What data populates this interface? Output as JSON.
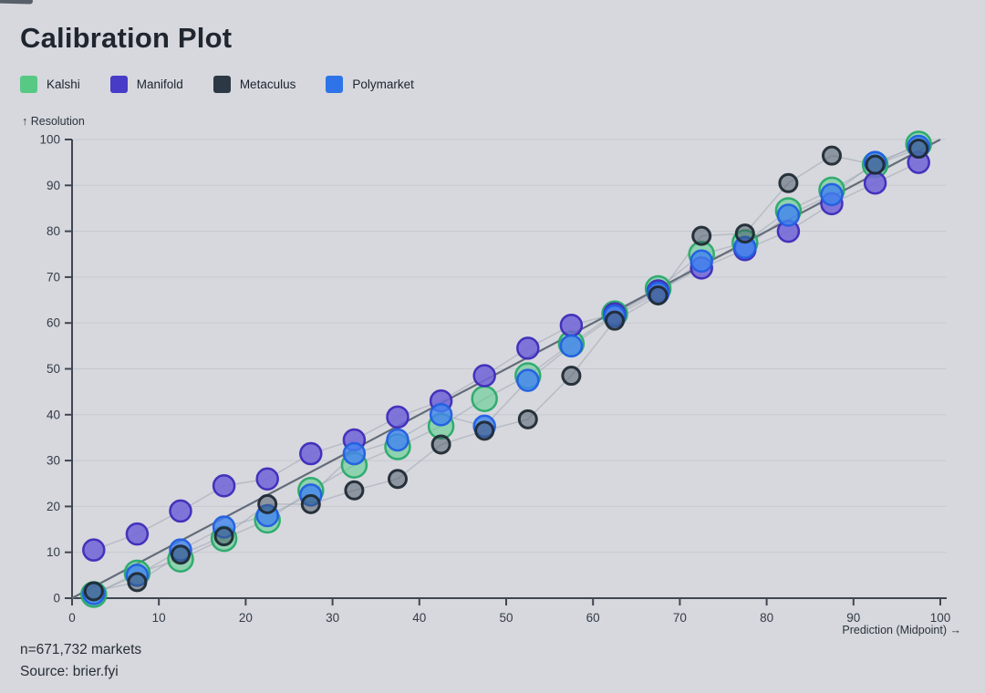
{
  "title": "Calibration Plot",
  "legend": {
    "items": [
      {
        "label": "Kalshi",
        "color": "#57c984"
      },
      {
        "label": "Manifold",
        "color": "#473bc8"
      },
      {
        "label": "Metaculus",
        "color": "#2c3844"
      },
      {
        "label": "Polymarket",
        "color": "#2e74e8"
      }
    ]
  },
  "footer": {
    "sample_size": "n=671,732 markets",
    "source": "Source: brier.fyi"
  },
  "chart_data": {
    "type": "scatter",
    "title": "Calibration Plot",
    "xlabel": "Prediction (Midpoint) →",
    "ylabel": "↑ Resolution",
    "xlim": [
      0,
      100
    ],
    "ylim": [
      0,
      100
    ],
    "x_ticks": [
      0,
      10,
      20,
      30,
      40,
      50,
      60,
      70,
      80,
      90,
      100
    ],
    "y_ticks": [
      0,
      10,
      20,
      30,
      40,
      50,
      60,
      70,
      80,
      90,
      100
    ],
    "grid": "horizontal",
    "reference_line": "y = x diagonal (perfect calibration)",
    "legend_position": "top-left",
    "x": [
      2.5,
      7.5,
      12.5,
      17.5,
      22.5,
      27.5,
      32.5,
      37.5,
      42.5,
      47.5,
      52.5,
      57.5,
      62.5,
      67.5,
      72.5,
      77.5,
      82.5,
      87.5,
      92.5,
      97.5
    ],
    "series": [
      {
        "name": "Kalshi",
        "values": [
          0.8,
          5.5,
          8.5,
          13,
          17,
          23.5,
          29,
          33,
          37.5,
          43.5,
          48.5,
          55.5,
          62,
          67.5,
          75,
          77.5,
          84.5,
          89,
          94.5,
          99
        ],
        "marker_radius": 13.5,
        "fill": "rgba(86,205,137,0.55)",
        "stroke": "rgba(40,170,105,0.95)",
        "stroke_width": 2.5
      },
      {
        "name": "Manifold",
        "values": [
          10.5,
          14,
          19,
          24.5,
          26,
          31.5,
          34.5,
          39.5,
          43,
          48.5,
          54.5,
          59.5,
          62,
          67,
          72,
          76,
          80,
          86,
          90.5,
          95
        ],
        "marker_radius": 11.5,
        "fill": "rgba(112,100,216,0.85)",
        "stroke": "rgba(62,43,185,0.95)",
        "stroke_width": 2.5
      },
      {
        "name": "Polymarket",
        "values": [
          1,
          5,
          10.5,
          15.5,
          18,
          22.5,
          31.5,
          34.5,
          40,
          37.5,
          47.5,
          55,
          61.5,
          66.5,
          73.5,
          76.5,
          83.5,
          88,
          95,
          98.5
        ],
        "marker_radius": 11.5,
        "fill": "rgba(66,133,240,0.8)",
        "stroke": "rgba(33,95,226,0.95)",
        "stroke_width": 2.5
      },
      {
        "name": "Metaculus",
        "values": [
          1.5,
          3.5,
          9.5,
          13.5,
          20.5,
          20.5,
          23.5,
          26,
          33.5,
          36.5,
          39,
          48.5,
          60.5,
          66,
          79,
          79.5,
          90.5,
          96.5,
          94.5,
          98
        ],
        "marker_radius": 9.5,
        "fill": "rgba(68,84,100,0.5)",
        "stroke": "rgba(32,42,52,0.95)",
        "stroke_width": 3
      }
    ]
  }
}
